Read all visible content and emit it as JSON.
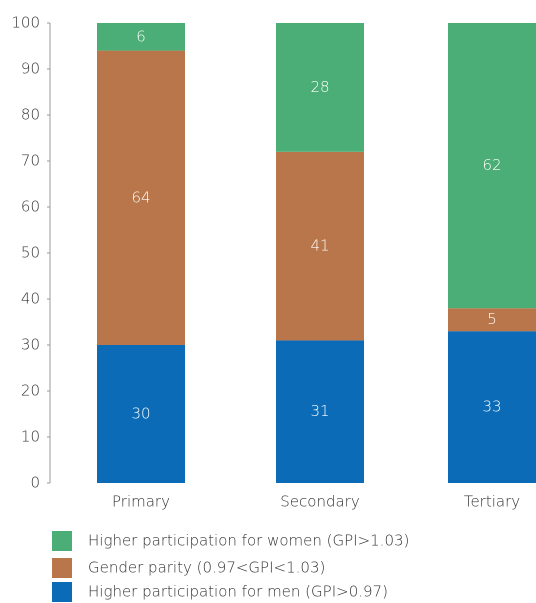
{
  "chart_data": {
    "type": "stacked_bar",
    "categories": [
      "Primary",
      "Secondary",
      "Tertiary"
    ],
    "series": [
      {
        "name": "Higher participation for men (GPI>0.97)",
        "color": "#0b6bb7",
        "values": [
          30,
          31,
          33
        ]
      },
      {
        "name": "Gender parity (0.97<GPI<1.03)",
        "color": "#b8764a",
        "values": [
          64,
          41,
          5
        ]
      },
      {
        "name": "Higher participation for women (GPI>1.03)",
        "color": "#4cae77",
        "values": [
          6,
          28,
          62
        ]
      }
    ],
    "ylim": [
      0,
      100
    ],
    "yticks": [
      0,
      10,
      20,
      30,
      40,
      50,
      60,
      70,
      80,
      90,
      100
    ]
  }
}
